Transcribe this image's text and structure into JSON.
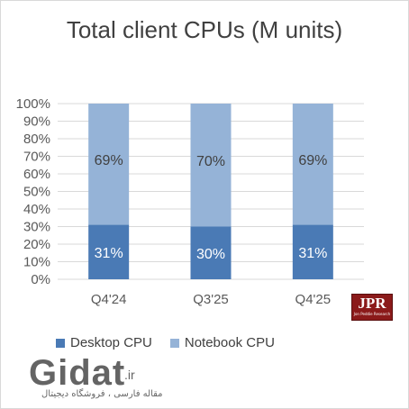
{
  "chart_data": {
    "type": "bar",
    "stacked": true,
    "percent": true,
    "title": "Total client CPUs (M units)",
    "categories": [
      "Q4'24",
      "Q3'25",
      "Q4'25"
    ],
    "series": [
      {
        "name": "Desktop CPU",
        "values": [
          31,
          30,
          31
        ],
        "labels": [
          "31%",
          "30%",
          "31%"
        ],
        "color": "#4a7ab5"
      },
      {
        "name": "Notebook CPU",
        "values": [
          69,
          70,
          69
        ],
        "labels": [
          "69%",
          "70%",
          "69%"
        ],
        "color": "#95b3d7"
      }
    ],
    "ylim": [
      0,
      100
    ],
    "yticks": [
      "0%",
      "10%",
      "20%",
      "30%",
      "40%",
      "50%",
      "60%",
      "70%",
      "80%",
      "90%",
      "100%"
    ],
    "grid": true,
    "legend": "bottom"
  },
  "logo": {
    "text": "JPR",
    "subtext": "Jon Peddie Research",
    "color": "#8b1a1a"
  },
  "watermark": {
    "brand": "Gidat",
    "tld": ".ir",
    "tagline": "مقاله فارسی ، فروشگاه دیجیتال"
  }
}
